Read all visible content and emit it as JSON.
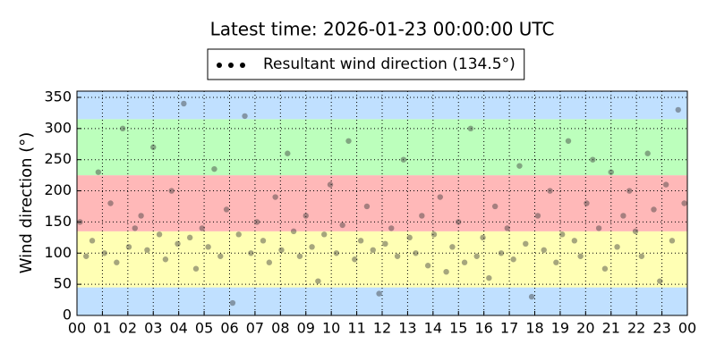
{
  "chart_data": {
    "type": "scatter",
    "title": "Latest time: 2026-01-23 00:00:00 UTC",
    "y_label": "Wind direction (°)",
    "xlim": [
      0,
      24
    ],
    "ylim": [
      0,
      360
    ],
    "xticks": [
      {
        "value": 0,
        "label": "00"
      },
      {
        "value": 1,
        "label": "01"
      },
      {
        "value": 2,
        "label": "02"
      },
      {
        "value": 3,
        "label": "03"
      },
      {
        "value": 4,
        "label": "04"
      },
      {
        "value": 5,
        "label": "05"
      },
      {
        "value": 6,
        "label": "06"
      },
      {
        "value": 7,
        "label": "07"
      },
      {
        "value": 8,
        "label": "08"
      },
      {
        "value": 9,
        "label": "09"
      },
      {
        "value": 10,
        "label": "10"
      },
      {
        "value": 11,
        "label": "11"
      },
      {
        "value": 12,
        "label": "12"
      },
      {
        "value": 13,
        "label": "13"
      },
      {
        "value": 14,
        "label": "14"
      },
      {
        "value": 15,
        "label": "15"
      },
      {
        "value": 16,
        "label": "16"
      },
      {
        "value": 17,
        "label": "17"
      },
      {
        "value": 18,
        "label": "18"
      },
      {
        "value": 19,
        "label": "19"
      },
      {
        "value": 20,
        "label": "20"
      },
      {
        "value": 21,
        "label": "21"
      },
      {
        "value": 22,
        "label": "22"
      },
      {
        "value": 23,
        "label": "23"
      },
      {
        "value": 24,
        "label": "00"
      }
    ],
    "yticks": [
      0,
      50,
      100,
      150,
      200,
      250,
      300,
      350
    ],
    "grid": true,
    "legend": "top",
    "bands": [
      {
        "from": 0,
        "to": 45,
        "color": "#c0e0ff"
      },
      {
        "from": 45,
        "to": 135,
        "color": "#ffffb4"
      },
      {
        "from": 135,
        "to": 225,
        "color": "#ffb8b8"
      },
      {
        "from": 225,
        "to": 315,
        "color": "#bcffbc"
      },
      {
        "from": 315,
        "to": 360,
        "color": "#c0e0ff"
      }
    ],
    "series": [
      {
        "name": "Resultant wind direction (134.5°)",
        "color": "#3a3a3a",
        "legend_color": "#000000",
        "x": [
          0.12,
          0.36,
          0.6,
          0.84,
          1.08,
          1.32,
          1.56,
          1.8,
          2.04,
          2.28,
          2.52,
          2.76,
          3.0,
          3.24,
          3.48,
          3.72,
          3.96,
          4.2,
          4.44,
          4.68,
          4.92,
          5.16,
          5.4,
          5.64,
          5.88,
          6.12,
          6.36,
          6.6,
          6.84,
          7.08,
          7.32,
          7.56,
          7.8,
          8.04,
          8.28,
          8.52,
          8.76,
          9.0,
          9.24,
          9.48,
          9.72,
          9.96,
          10.2,
          10.44,
          10.68,
          10.92,
          11.16,
          11.4,
          11.64,
          11.88,
          12.12,
          12.36,
          12.6,
          12.84,
          13.08,
          13.32,
          13.56,
          13.8,
          14.04,
          14.28,
          14.52,
          14.76,
          15.0,
          15.24,
          15.48,
          15.72,
          15.96,
          16.2,
          16.44,
          16.68,
          16.92,
          17.16,
          17.4,
          17.64,
          17.88,
          18.12,
          18.36,
          18.6,
          18.84,
          19.08,
          19.32,
          19.56,
          19.8,
          20.04,
          20.28,
          20.52,
          20.76,
          21.0,
          21.24,
          21.48,
          21.72,
          21.96,
          22.2,
          22.44,
          22.68,
          22.92,
          23.16,
          23.4,
          23.64,
          23.88
        ],
        "values": [
          150,
          95,
          120,
          230,
          100,
          180,
          85,
          300,
          110,
          140,
          160,
          105,
          270,
          130,
          90,
          200,
          115,
          340,
          125,
          75,
          140,
          110,
          235,
          95,
          170,
          20,
          130,
          320,
          100,
          150,
          120,
          85,
          190,
          105,
          260,
          135,
          95,
          160,
          110,
          55,
          130,
          210,
          100,
          145,
          280,
          90,
          120,
          175,
          105,
          35,
          115,
          140,
          95,
          250,
          125,
          100,
          160,
          80,
          130,
          190,
          70,
          110,
          150,
          85,
          300,
          95,
          125,
          60,
          175,
          100,
          140,
          90,
          240,
          115,
          30,
          160,
          105,
          200,
          85,
          130,
          280,
          120,
          95,
          180,
          250,
          140,
          75,
          230,
          110,
          160,
          200,
          135,
          95,
          260,
          170,
          55,
          210,
          120,
          330,
          180
        ]
      }
    ]
  }
}
